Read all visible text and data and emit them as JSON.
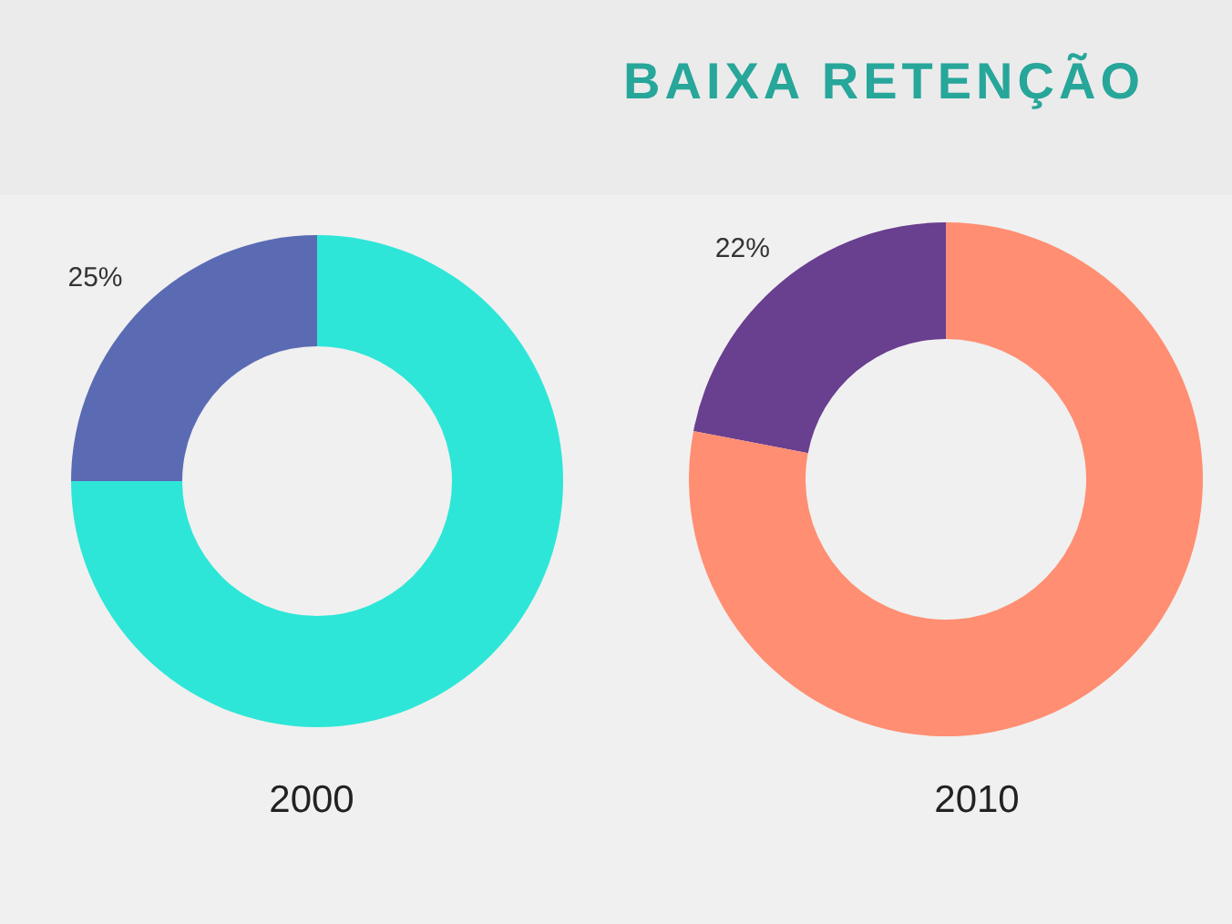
{
  "chart_data": [
    {
      "type": "donut",
      "xlabel": "2000",
      "categories": [
        null,
        null
      ],
      "values": [
        25,
        75
      ],
      "colors": [
        "#5a6bb4",
        "#2ee6d7"
      ],
      "value_labels": [
        "25%",
        null
      ]
    },
    {
      "type": "donut",
      "title": "BAIXA RETENÇÃO",
      "xlabel": "2010",
      "categories": [
        null,
        null
      ],
      "values": [
        22,
        78
      ],
      "colors": [
        "#693f8f",
        "#ff8e72"
      ],
      "value_labels": [
        "22%",
        null
      ]
    }
  ]
}
